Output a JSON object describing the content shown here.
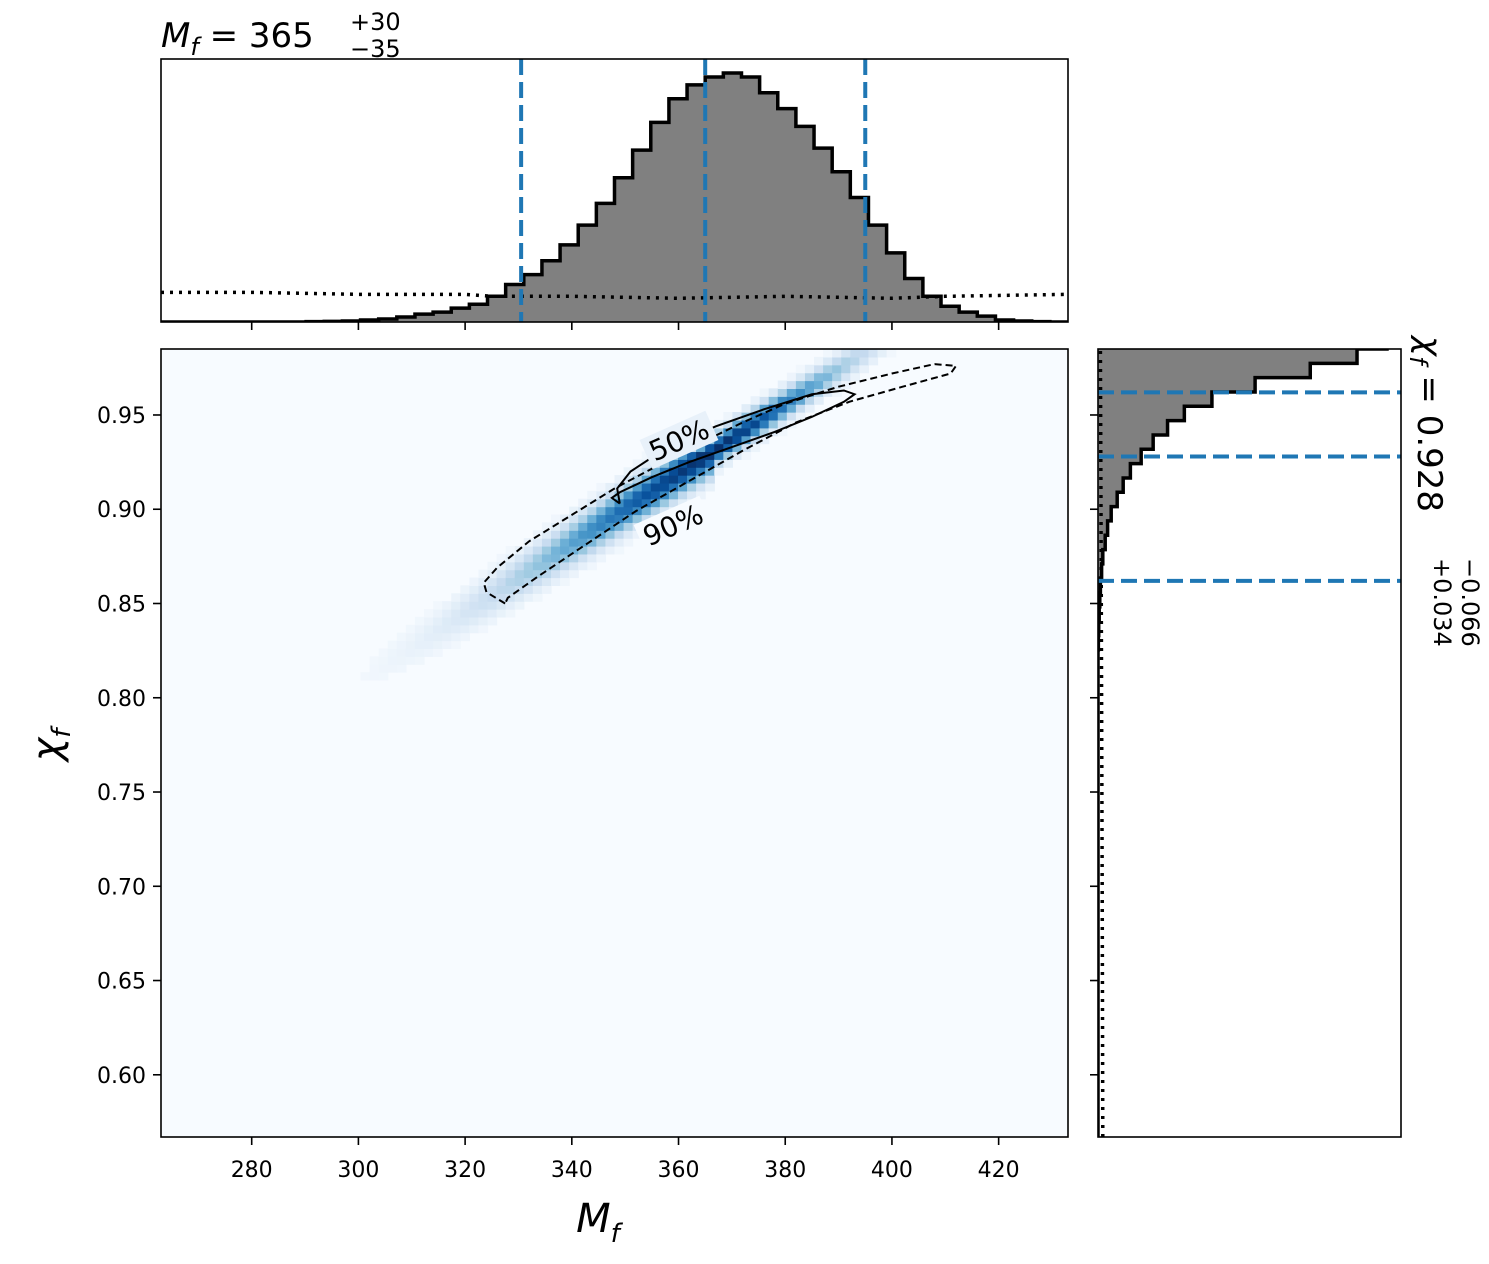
{
  "chart_data": {
    "type": "corner",
    "title_top": {
      "symbol": "M",
      "subscript": "f",
      "equals": "=",
      "value": "365",
      "plus": "+30",
      "minus": "−35"
    },
    "title_right": {
      "symbol": "χ",
      "subscript": "f",
      "equals": "=",
      "value": "0.928",
      "plus": "+0.034",
      "minus": "−0.066"
    },
    "x_axis": {
      "label": "M",
      "label_subscript": "f",
      "lim": [
        263,
        433
      ],
      "ticks": [
        280,
        300,
        320,
        340,
        360,
        380,
        400,
        420
      ],
      "tick_labels": [
        "280",
        "300",
        "320",
        "340",
        "360",
        "380",
        "400",
        "420"
      ]
    },
    "y_axis": {
      "label": "χ",
      "label_subscript": "f",
      "lim": [
        0.567,
        0.985
      ],
      "ticks": [
        0.6,
        0.65,
        0.7,
        0.75,
        0.8,
        0.85,
        0.9,
        0.95
      ],
      "tick_labels": [
        "0.60",
        "0.65",
        "0.70",
        "0.75",
        "0.80",
        "0.85",
        "0.90",
        "0.95"
      ]
    },
    "colors": {
      "hist_fill": "#808080",
      "quantile_lines": "#1f77b4",
      "density": "Blues",
      "contour": "#000000"
    },
    "mf_histogram": {
      "edges_start": 263,
      "bin_width": 3.4,
      "counts": [
        0,
        0,
        0,
        0,
        0,
        0,
        0,
        0,
        0.2,
        0.3,
        0.5,
        1,
        1.5,
        2.5,
        4,
        5,
        7,
        9,
        13,
        19,
        24,
        31,
        39,
        49,
        60,
        73,
        87,
        101,
        113,
        120,
        124,
        126,
        124,
        116,
        108,
        99,
        88,
        76,
        63,
        49,
        35,
        22,
        13,
        8,
        5,
        3,
        1,
        0.5,
        0.2,
        0,
        0
      ]
    },
    "mf_prior": {
      "x": [
        263,
        280,
        300,
        320,
        325,
        340,
        360,
        380,
        400,
        410,
        433
      ],
      "density": [
        15,
        15,
        14,
        14,
        13,
        13,
        12,
        13,
        12,
        13,
        14
      ]
    },
    "mf_quantiles": [
      330.5,
      365,
      395
    ],
    "chi_histogram": {
      "edges_start": 0.567,
      "bin_width": 0.0076,
      "counts": [
        0,
        0,
        0,
        0,
        0,
        0,
        0,
        0,
        0,
        0,
        0,
        0,
        0,
        0,
        0,
        0,
        0,
        0,
        0,
        0,
        0,
        0,
        0,
        0,
        0,
        0,
        0,
        0,
        0,
        0,
        0,
        0,
        0,
        0,
        0.3,
        0.6,
        1,
        1.5,
        2,
        3,
        4,
        6,
        8,
        11,
        16,
        21,
        27,
        36,
        46,
        58,
        72,
        95,
        131,
        177,
        216,
        241,
        189,
        119,
        109,
        111,
        44,
        4,
        0,
        0,
        0,
        0,
        0
      ]
    },
    "chi_prior": {
      "y": [
        0.567,
        0.7,
        0.8,
        0.9,
        0.985
      ],
      "density": [
        4,
        3.5,
        3,
        2.5,
        2
      ]
    },
    "chi_quantiles": [
      0.862,
      0.928,
      0.962
    ],
    "joint_density": {
      "mean": [
        367,
        0.932
      ],
      "std": [
        15,
        0.028
      ],
      "corr": 0.985
    },
    "contours": [
      {
        "level": "50%",
        "style": "solid",
        "path": [
          [
            349,
            0.903
          ],
          [
            347.5,
            0.906
          ],
          [
            349,
            0.909
          ],
          [
            355,
            0.917
          ],
          [
            362,
            0.925
          ],
          [
            370,
            0.933
          ],
          [
            378,
            0.941
          ],
          [
            385,
            0.949
          ],
          [
            391,
            0.957
          ],
          [
            393,
            0.961
          ],
          [
            391,
            0.963
          ],
          [
            385,
            0.961
          ],
          [
            376,
            0.953
          ],
          [
            367,
            0.944
          ],
          [
            358,
            0.933
          ],
          [
            351,
            0.92
          ],
          [
            348.5,
            0.911
          ],
          [
            349,
            0.903
          ]
        ]
      },
      {
        "level": "90%",
        "style": "dashed",
        "path": [
          [
            327.5,
            0.85
          ],
          [
            324,
            0.856
          ],
          [
            323.5,
            0.861
          ],
          [
            326,
            0.869
          ],
          [
            332,
            0.883
          ],
          [
            340,
            0.897
          ],
          [
            348,
            0.911
          ],
          [
            356,
            0.923
          ],
          [
            364,
            0.935
          ],
          [
            372,
            0.946
          ],
          [
            380,
            0.956
          ],
          [
            390,
            0.965
          ],
          [
            400,
            0.972
          ],
          [
            408,
            0.977
          ],
          [
            412,
            0.976
          ],
          [
            411,
            0.972
          ],
          [
            402,
            0.965
          ],
          [
            392,
            0.957
          ],
          [
            382,
            0.946
          ],
          [
            372,
            0.931
          ],
          [
            362,
            0.915
          ],
          [
            352,
            0.899
          ],
          [
            343,
            0.882
          ],
          [
            334,
            0.865
          ],
          [
            328,
            0.853
          ],
          [
            327.5,
            0.85
          ]
        ]
      }
    ]
  }
}
